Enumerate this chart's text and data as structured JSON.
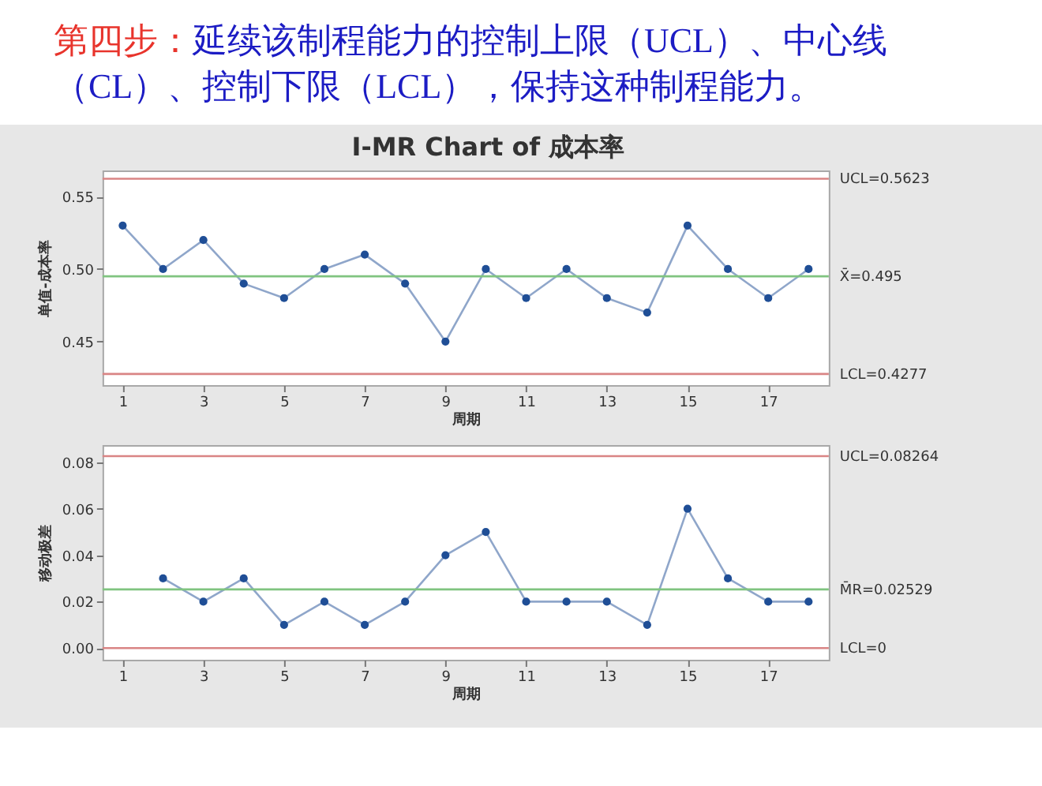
{
  "chart_data": [
    {
      "type": "line",
      "title": "第四步：延续该制程能力的控制上限（UCL）、中心线（CL）、控制下限（LCL），保持这种制程能力。",
      "subtitle": "I-MR Chart of 成本率",
      "xlabel": "周期",
      "ylabel": "单值-成本率",
      "x": [
        1,
        2,
        3,
        4,
        5,
        6,
        7,
        8,
        9,
        10,
        11,
        12,
        13,
        14,
        15,
        16,
        17,
        18
      ],
      "series": [
        {
          "color": "#1f4e96",
          "values": [
            0.53,
            0.5,
            0.52,
            0.49,
            0.48,
            0.5,
            0.51,
            0.49,
            0.45,
            0.5,
            0.48,
            0.5,
            0.48,
            0.47,
            0.53,
            0.5,
            0.48,
            0.5
          ]
        }
      ],
      "xlim": [
        0.5,
        18.5
      ],
      "xticks": [
        1,
        3,
        5,
        7,
        9,
        11,
        13,
        15,
        17
      ],
      "ylim": [
        0.42,
        0.568
      ],
      "yticks": [
        0.45,
        {
          "value": 0.5,
          "label": "0.50"
        },
        0.55
      ],
      "ref_lines": [
        {
          "axis": "y",
          "value": 0.5623,
          "label": "UCL=0.5623",
          "color": "#d98585"
        },
        {
          "axis": "y",
          "value": 0.495,
          "label": "X̄=0.495",
          "color": "#80c480"
        },
        {
          "axis": "y",
          "value": 0.4277,
          "label": "LCL=0.4277",
          "color": "#d98585"
        }
      ],
      "marker": "circle",
      "line_style": "solid"
    },
    {
      "type": "line",
      "xlabel": "周期",
      "ylabel": "移动极差",
      "x": [
        2,
        3,
        4,
        5,
        6,
        7,
        8,
        9,
        10,
        11,
        12,
        13,
        14,
        15,
        16,
        17,
        18
      ],
      "series": [
        {
          "color": "#1f4e96",
          "values": [
            0.03,
            0.02,
            0.03,
            0.01,
            0.02,
            0.01,
            0.02,
            0.04,
            0.05,
            0.02,
            0.02,
            0.02,
            0.01,
            0.06,
            0.03,
            0.02,
            0.02
          ]
        }
      ],
      "xlim": [
        0.5,
        18.5
      ],
      "xticks": [
        1,
        3,
        5,
        7,
        9,
        11,
        13,
        15,
        17
      ],
      "ylim": [
        -0.005,
        0.0874
      ],
      "yticks": [
        {
          "value": 0,
          "label": "0.00"
        },
        0.02,
        0.04,
        0.06,
        0.08
      ],
      "ref_lines": [
        {
          "axis": "y",
          "value": 0.08264,
          "label": "UCL=0.08264",
          "color": "#d98585"
        },
        {
          "axis": "y",
          "value": 0.02529,
          "label": "M̄R=0.02529",
          "color": "#80c480"
        },
        {
          "axis": "y",
          "value": 0,
          "label": "LCL=0",
          "color": "#d98585"
        }
      ],
      "marker": "circle",
      "line_style": "solid"
    }
  ]
}
